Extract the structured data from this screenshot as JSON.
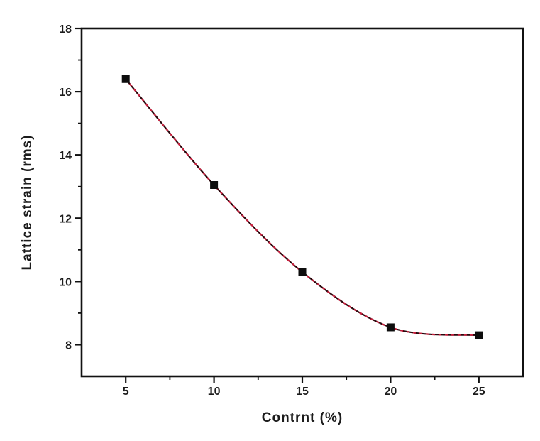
{
  "figure": {
    "background": "#ffffff"
  },
  "chart_data": {
    "type": "line",
    "title": "",
    "xlabel": "Contrnt (%)",
    "ylabel": "Lattice strain (rms)",
    "x": [
      5,
      10,
      15,
      20,
      25
    ],
    "y": [
      16.4,
      13.05,
      10.3,
      8.55,
      8.3
    ],
    "xlim": [
      2.5,
      27.5
    ],
    "ylim": [
      7,
      18
    ],
    "x_major_ticks": [
      5,
      10,
      15,
      20,
      25
    ],
    "x_minor_ticks": [
      7.5,
      12.5,
      17.5,
      22.5
    ],
    "y_major_ticks": [
      8,
      10,
      12,
      14,
      16,
      18
    ],
    "y_minor_ticks": [
      9,
      11,
      13,
      15,
      17
    ],
    "grid": false,
    "legend": false,
    "smooth": true,
    "line_color_base": "#2a070c",
    "line_color_dash": "#c8203e",
    "line_width": 2.2,
    "marker": "square",
    "marker_color": "#0d0d0d",
    "marker_size": 11,
    "axis_color": "#111111",
    "tick_label_color": "#1c1c1c",
    "tick_label_font_size": 16
  }
}
